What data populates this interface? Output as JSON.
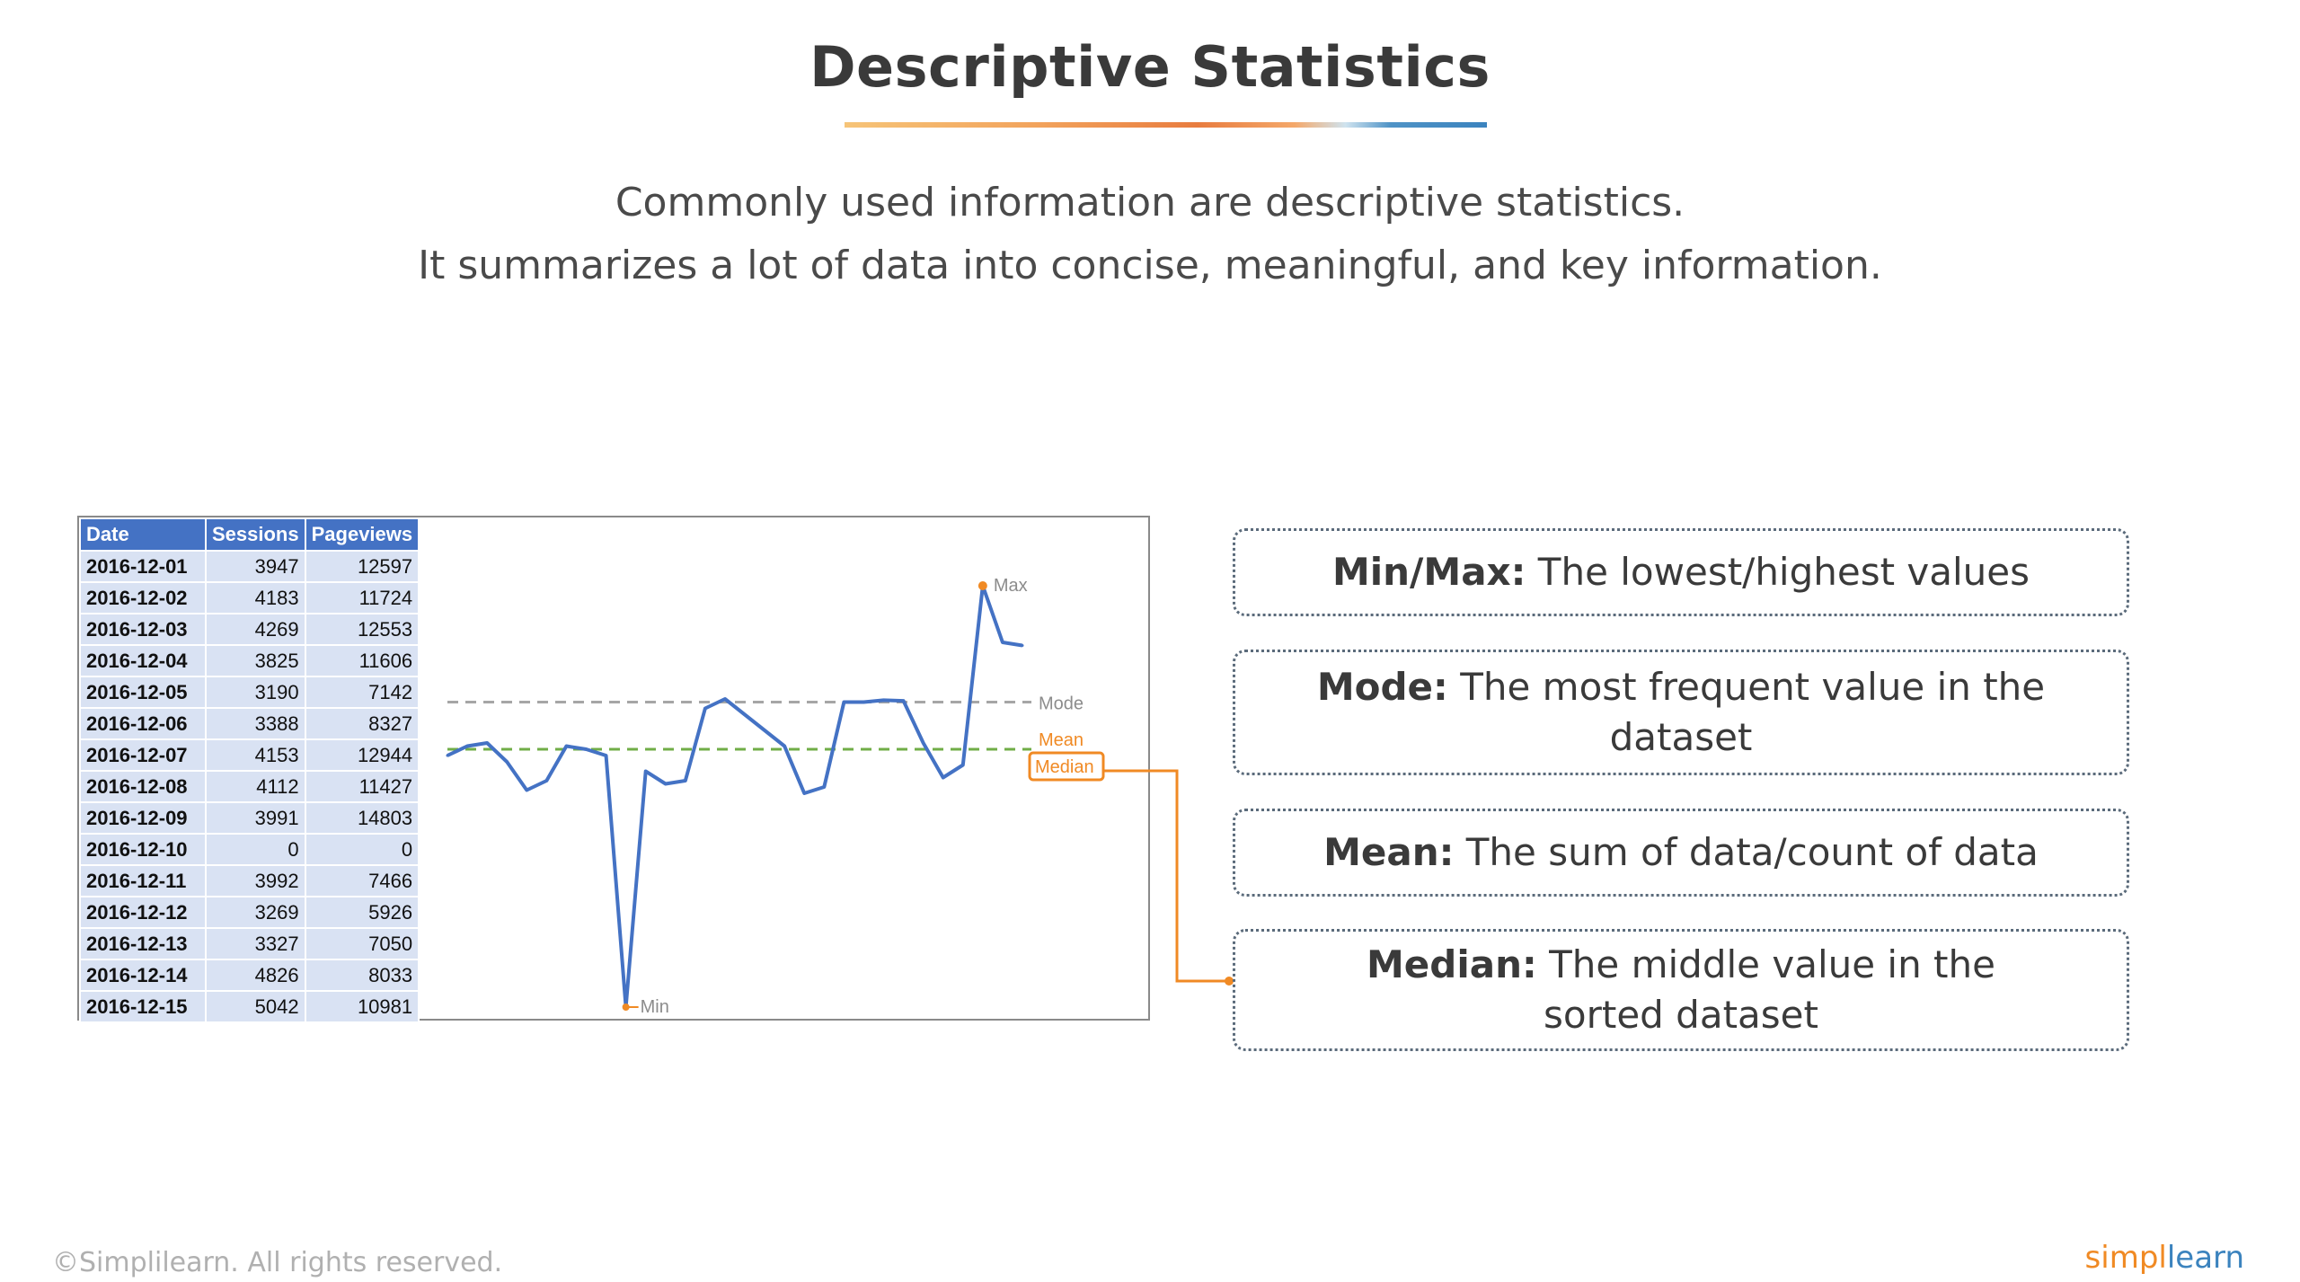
{
  "slide": {
    "title": "Descriptive Statistics",
    "subtitle_line1": "Commonly used information are descriptive statistics.",
    "subtitle_line2": "It summarizes a lot of data into concise, meaningful, and key information."
  },
  "table": {
    "headers": [
      "Date",
      "Sessions",
      "Pageviews"
    ],
    "rows": [
      [
        "2016-12-01",
        "3947",
        "12597"
      ],
      [
        "2016-12-02",
        "4183",
        "11724"
      ],
      [
        "2016-12-03",
        "4269",
        "12553"
      ],
      [
        "2016-12-04",
        "3825",
        "11606"
      ],
      [
        "2016-12-05",
        "3190",
        "7142"
      ],
      [
        "2016-12-06",
        "3388",
        "8327"
      ],
      [
        "2016-12-07",
        "4153",
        "12944"
      ],
      [
        "2016-12-08",
        "4112",
        "11427"
      ],
      [
        "2016-12-09",
        "3991",
        "14803"
      ],
      [
        "2016-12-10",
        "0",
        "0"
      ],
      [
        "2016-12-11",
        "3992",
        "7466"
      ],
      [
        "2016-12-12",
        "3269",
        "5926"
      ],
      [
        "2016-12-13",
        "3327",
        "7050"
      ],
      [
        "2016-12-14",
        "4826",
        "8033"
      ],
      [
        "2016-12-15",
        "5042",
        "10981"
      ]
    ]
  },
  "chart_data": {
    "type": "line",
    "series": [
      {
        "values": [
          4000,
          4150,
          4200,
          3900,
          3450,
          3600,
          4150,
          4100,
          4000,
          0,
          3750,
          3550,
          3600,
          4750,
          4900,
          4650,
          4400,
          4150,
          3400,
          3500,
          4850,
          4850,
          4880,
          4870,
          4200,
          3650,
          3850,
          6700,
          5800,
          5750
        ]
      }
    ],
    "reference_lines": [
      {
        "label": "Mode",
        "value": 4850,
        "style": "dashed",
        "color": "#a6a6a6"
      },
      {
        "label": "Mean",
        "value": 4100,
        "style": "dashed",
        "color": "#f08a24"
      },
      {
        "label": "Median",
        "value": 4100,
        "style": "dashed",
        "color": "#70ad47"
      }
    ],
    "annotations": {
      "max_label": "Max",
      "min_label": "Min",
      "mode_label": "Mode",
      "mean_label": "Mean",
      "median_label": "Median"
    },
    "ylim": [
      0,
      7000
    ],
    "colors": {
      "line": "#4472c4",
      "accent": "#f08a24"
    }
  },
  "cards": [
    {
      "term": "Min/Max:",
      "desc": "The lowest/highest values"
    },
    {
      "term": "Mode:",
      "desc": "The most frequent value in the dataset"
    },
    {
      "term": "Mean:",
      "desc": "The sum of data/count of data"
    },
    {
      "term": "Median:",
      "desc": "The middle value in the sorted dataset"
    }
  ],
  "footer": {
    "copyright": "©Simplilearn. All rights reserved.",
    "logo_part1": "simpl",
    "logo_part2": "learn"
  }
}
